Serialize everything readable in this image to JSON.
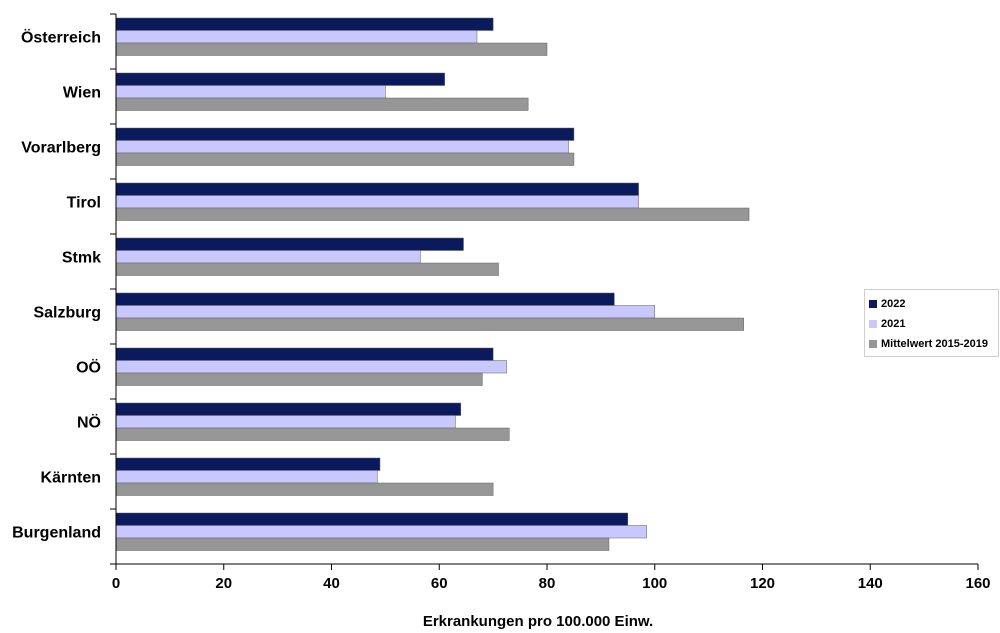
{
  "chart_data": {
    "type": "bar",
    "orientation": "horizontal",
    "categories": [
      "Österreich",
      "Wien",
      "Vorarlberg",
      "Tirol",
      "Stmk",
      "Salzburg",
      "OÖ",
      "NÖ",
      "Kärnten",
      "Burgenland"
    ],
    "series": [
      {
        "name": "2022",
        "color": "#0a1a5c",
        "values": [
          70,
          61,
          85,
          97,
          64.5,
          92.5,
          70,
          64,
          49,
          95
        ]
      },
      {
        "name": "2021",
        "color": "#c8c8ff",
        "values": [
          67,
          50,
          84,
          97,
          56.5,
          100,
          72.5,
          63,
          48.5,
          98.5
        ]
      },
      {
        "name": "Mittelwert 2015-2019",
        "color": "#969696",
        "values": [
          80,
          76.5,
          85,
          117.5,
          71,
          116.5,
          68,
          73,
          70,
          91.5
        ]
      }
    ],
    "xlabel": "Erkrankungen pro 100.000 Einw.",
    "ylabel": "",
    "title": "",
    "xlim": [
      0,
      160
    ],
    "xticks": [
      "0",
      "20",
      "40",
      "60",
      "80",
      "100",
      "120",
      "140",
      "160"
    ],
    "grid": false,
    "legend_position": "right"
  }
}
